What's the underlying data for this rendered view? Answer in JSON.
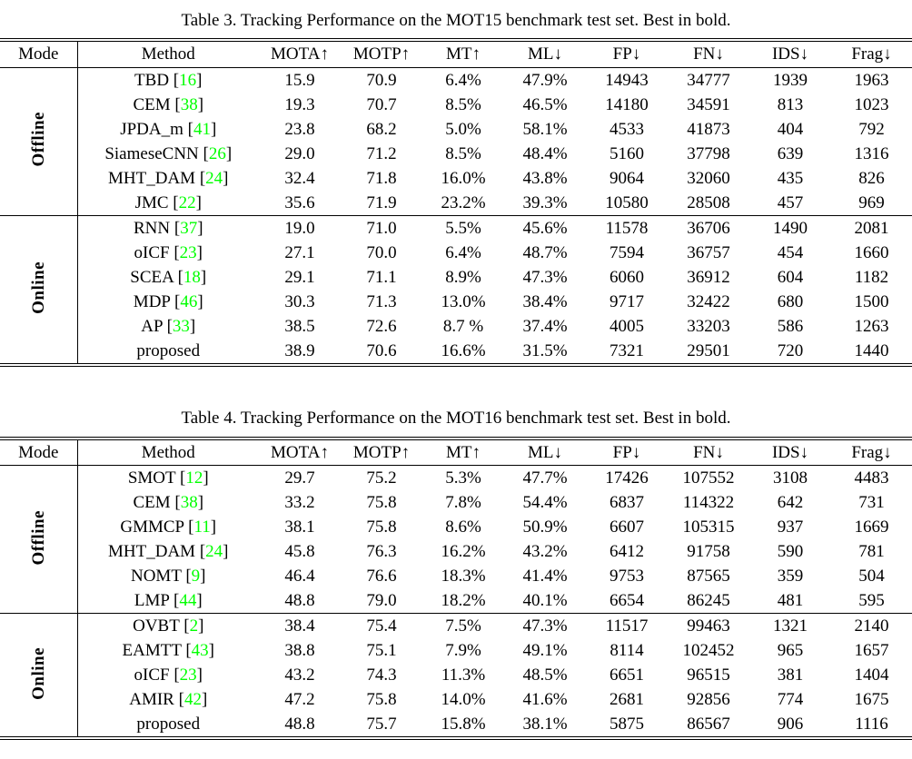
{
  "page": {
    "background_color": "#ffffff",
    "text_color": "#000000",
    "citation_color": "#00ff00"
  },
  "tables": [
    {
      "name": "results-table-mot15",
      "caption": "Table 3. Tracking Performance on the MOT15 benchmark test set. Best in bold.",
      "headers": [
        "Mode",
        "Method",
        "MOTA↑",
        "MOTP↑",
        "MT↑",
        "ML↓",
        "FP↓",
        "FN↓",
        "IDS↓",
        "Frag↓"
      ],
      "sections": [
        {
          "mode": "Offline",
          "rows": [
            {
              "method": "TBD",
              "cite": "16",
              "cells": [
                "15.9",
                "70.9",
                "6.4%",
                "47.9%",
                "14943",
                "34777",
                "1939",
                "1963"
              ],
              "bold": [
                0,
                0,
                0,
                0,
                0,
                0,
                0,
                0
              ]
            },
            {
              "method": "CEM",
              "cite": "38",
              "cells": [
                "19.3",
                "70.7",
                "8.5%",
                "46.5%",
                "14180",
                "34591",
                "813",
                "1023"
              ],
              "bold": [
                0,
                0,
                0,
                0,
                0,
                0,
                0,
                0
              ]
            },
            {
              "method": "JPDA_m",
              "cite": "41",
              "cells": [
                "23.8",
                "68.2",
                "5.0%",
                "58.1%",
                "4533",
                "41873",
                "404",
                "792"
              ],
              "bold": [
                0,
                0,
                0,
                0,
                1,
                0,
                1,
                1
              ]
            },
            {
              "method": "SiameseCNN",
              "cite": "26",
              "cells": [
                "29.0",
                "71.2",
                "8.5%",
                "48.4%",
                "5160",
                "37798",
                "639",
                "1316"
              ],
              "bold": [
                0,
                0,
                0,
                0,
                0,
                0,
                0,
                0
              ]
            },
            {
              "method": "MHT_DAM",
              "cite": "24",
              "cells": [
                "32.4",
                "71.8",
                "16.0%",
                "43.8%",
                "9064",
                "32060",
                "435",
                "826"
              ],
              "bold": [
                0,
                0,
                0,
                0,
                0,
                0,
                0,
                0
              ]
            },
            {
              "method": "JMC",
              "cite": "22",
              "cells": [
                "35.6",
                "71.9",
                "23.2%",
                "39.3%",
                "10580",
                "28508",
                "457",
                "969"
              ],
              "bold": [
                1,
                1,
                1,
                1,
                0,
                1,
                0,
                0
              ]
            }
          ]
        },
        {
          "mode": "Online",
          "rows": [
            {
              "method": "RNN",
              "cite": "37",
              "cells": [
                "19.0",
                "71.0",
                "5.5%",
                "45.6%",
                "11578",
                "36706",
                "1490",
                "2081"
              ],
              "bold": [
                0,
                0,
                0,
                0,
                0,
                0,
                0,
                0
              ]
            },
            {
              "method": "oICF",
              "cite": "23",
              "cells": [
                "27.1",
                "70.0",
                "6.4%",
                "48.7%",
                "7594",
                "36757",
                "454",
                "1660"
              ],
              "bold": [
                0,
                0,
                0,
                0,
                0,
                0,
                1,
                0
              ]
            },
            {
              "method": "SCEA",
              "cite": "18",
              "cells": [
                "29.1",
                "71.1",
                "8.9%",
                "47.3%",
                "6060",
                "36912",
                "604",
                "1182"
              ],
              "bold": [
                0,
                0,
                0,
                0,
                0,
                0,
                0,
                1
              ]
            },
            {
              "method": "MDP",
              "cite": "46",
              "cells": [
                "30.3",
                "71.3",
                "13.0%",
                "38.4%",
                "9717",
                "32422",
                "680",
                "1500"
              ],
              "bold": [
                0,
                0,
                0,
                0,
                0,
                0,
                0,
                0
              ]
            },
            {
              "method": "AP",
              "cite": "33",
              "cells": [
                "38.5",
                "72.6",
                "8.7 %",
                "37.4%",
                "4005",
                "33203",
                "586",
                "1263"
              ],
              "bold": [
                0,
                1,
                0,
                0,
                1,
                0,
                0,
                0
              ]
            },
            {
              "method": "proposed",
              "cite": null,
              "cells": [
                "38.9",
                "70.6",
                "16.6%",
                "31.5%",
                "7321",
                "29501",
                "720",
                "1440"
              ],
              "bold": [
                1,
                0,
                1,
                1,
                0,
                1,
                0,
                0
              ]
            }
          ]
        }
      ]
    },
    {
      "name": "results-table-mot16",
      "caption": "Table 4. Tracking Performance on the MOT16 benchmark test set. Best in bold.",
      "headers": [
        "Mode",
        "Method",
        "MOTA↑",
        "MOTP↑",
        "MT↑",
        "ML↓",
        "FP↓",
        "FN↓",
        "IDS↓",
        "Frag↓"
      ],
      "sections": [
        {
          "mode": "Offline",
          "rows": [
            {
              "method": "SMOT",
              "cite": "12",
              "cells": [
                "29.7",
                "75.2",
                "5.3%",
                "47.7%",
                "17426",
                "107552",
                "3108",
                "4483"
              ],
              "bold": [
                0,
                0,
                0,
                0,
                0,
                0,
                0,
                0
              ]
            },
            {
              "method": "CEM",
              "cite": "38",
              "cells": [
                "33.2",
                "75.8",
                "7.8%",
                "54.4%",
                "6837",
                "114322",
                "642",
                "731"
              ],
              "bold": [
                0,
                0,
                0,
                0,
                0,
                0,
                0,
                0
              ]
            },
            {
              "method": "GMMCP",
              "cite": "11",
              "cells": [
                "38.1",
                "75.8",
                "8.6%",
                "50.9%",
                "6607",
                "105315",
                "937",
                "1669"
              ],
              "bold": [
                0,
                0,
                0,
                0,
                0,
                0,
                0,
                0
              ]
            },
            {
              "method": "MHT_DAM",
              "cite": "24",
              "cells": [
                "45.8",
                "76.3",
                "16.2%",
                "43.2%",
                "6412",
                "91758",
                "590",
                "781"
              ],
              "bold": [
                0,
                0,
                0,
                0,
                1,
                0,
                0,
                0
              ]
            },
            {
              "method": "NOMT",
              "cite": "9",
              "cells": [
                "46.4",
                "76.6",
                "18.3%",
                "41.4%",
                "9753",
                "87565",
                "359",
                "504"
              ],
              "bold": [
                0,
                0,
                1,
                0,
                0,
                0,
                1,
                1
              ]
            },
            {
              "method": "LMP",
              "cite": "44",
              "cells": [
                "48.8",
                "79.0",
                "18.2%",
                "40.1%",
                "6654",
                "86245",
                "481",
                "595"
              ],
              "bold": [
                1,
                1,
                0,
                1,
                0,
                1,
                0,
                0
              ]
            }
          ]
        },
        {
          "mode": "Online",
          "rows": [
            {
              "method": "OVBT",
              "cite": "2",
              "cells": [
                "38.4",
                "75.4",
                "7.5%",
                "47.3%",
                "11517",
                "99463",
                "1321",
                "2140"
              ],
              "bold": [
                0,
                0,
                0,
                0,
                0,
                0,
                0,
                0
              ]
            },
            {
              "method": "EAMTT",
              "cite": "43",
              "cells": [
                "38.8",
                "75.1",
                "7.9%",
                "49.1%",
                "8114",
                "102452",
                "965",
                "1657"
              ],
              "bold": [
                0,
                0,
                0,
                0,
                0,
                0,
                0,
                0
              ]
            },
            {
              "method": "oICF",
              "cite": "23",
              "cells": [
                "43.2",
                "74.3",
                "11.3%",
                "48.5%",
                "6651",
                "96515",
                "381",
                "1404"
              ],
              "bold": [
                0,
                0,
                0,
                0,
                0,
                0,
                1,
                0
              ]
            },
            {
              "method": "AMIR",
              "cite": "42",
              "cells": [
                "47.2",
                "75.8",
                "14.0%",
                "41.6%",
                "2681",
                "92856",
                "774",
                "1675"
              ],
              "bold": [
                0,
                1,
                0,
                0,
                1,
                0,
                0,
                0
              ]
            },
            {
              "method": "proposed",
              "cite": null,
              "cells": [
                "48.8",
                "75.7",
                "15.8%",
                "38.1%",
                "5875",
                "86567",
                "906",
                "1116"
              ],
              "bold": [
                1,
                0,
                1,
                1,
                0,
                1,
                0,
                1
              ]
            }
          ]
        }
      ]
    }
  ]
}
